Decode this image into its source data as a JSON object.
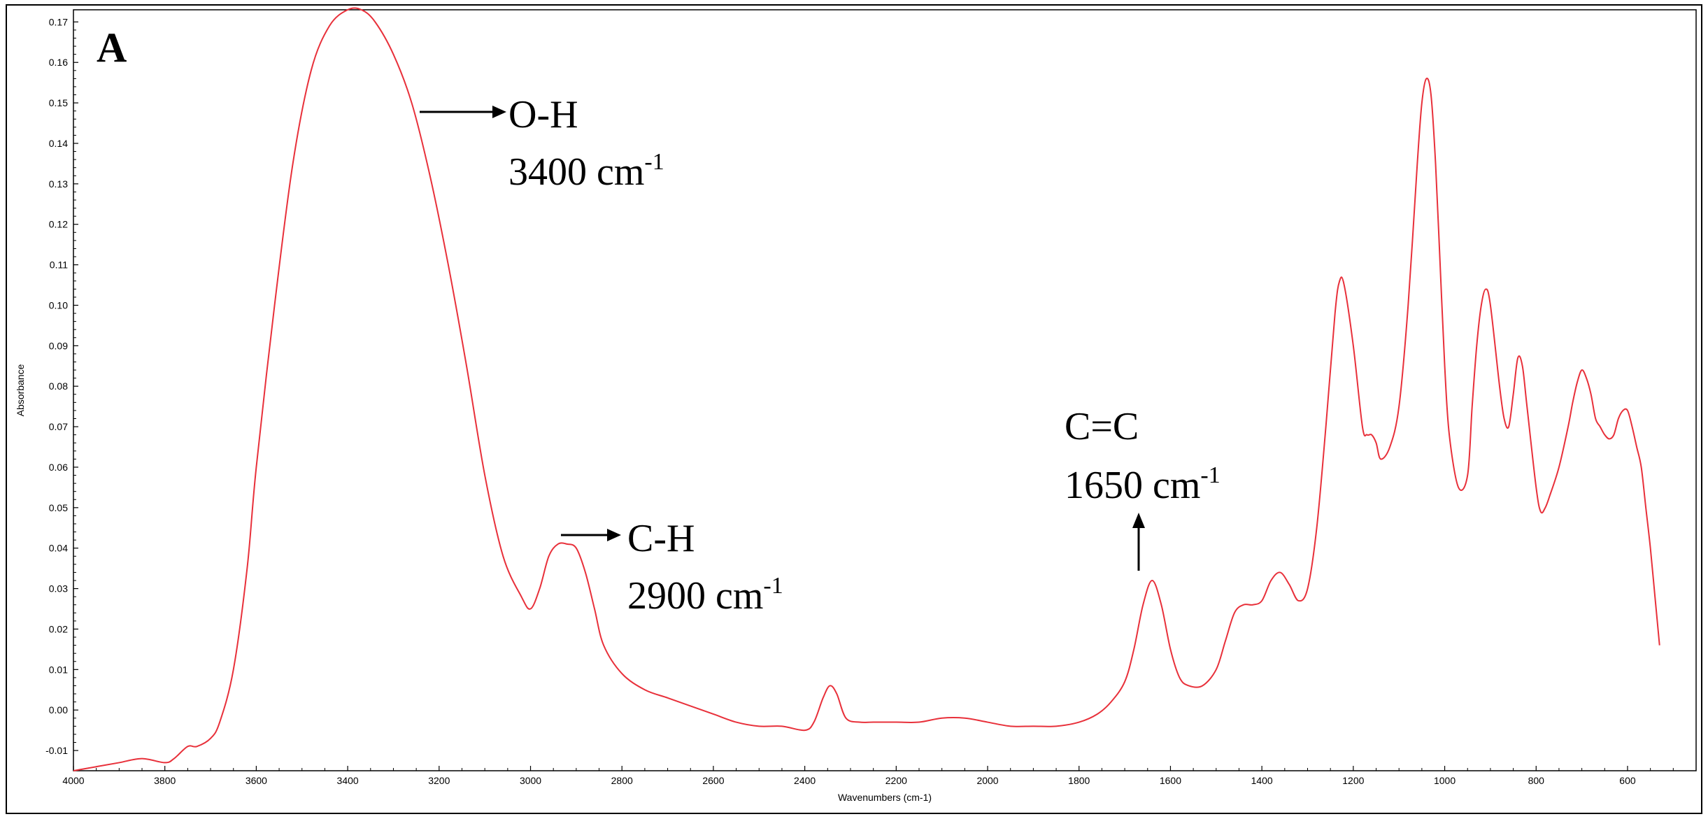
{
  "chart_data": {
    "type": "line",
    "panel_label": "A",
    "xlabel": "Wavenumbers (cm-1)",
    "ylabel": "Absorbance",
    "xlim": [
      4000,
      450
    ],
    "ylim": [
      -0.015,
      0.173
    ],
    "x_reversed": true,
    "grid": false,
    "x_ticks": [
      4000,
      3800,
      3600,
      3400,
      3200,
      3000,
      2800,
      2600,
      2400,
      2200,
      2000,
      1800,
      1600,
      1400,
      1200,
      1000,
      800,
      600
    ],
    "y_ticks": [
      -0.01,
      0.0,
      0.01,
      0.02,
      0.03,
      0.04,
      0.05,
      0.06,
      0.07,
      0.08,
      0.09,
      0.1,
      0.11,
      0.12,
      0.13,
      0.14,
      0.15,
      0.16,
      0.17
    ],
    "y_tick_labels": [
      "-0.01",
      "0.00",
      "0.01",
      "0.02",
      "0.03",
      "0.04",
      "0.05",
      "0.06",
      "0.07",
      "0.08",
      "0.09",
      "0.10",
      "0.11",
      "0.12",
      "0.13",
      "0.14",
      "0.15",
      "0.16",
      "0.17"
    ],
    "series": [
      {
        "color": "#e8303a",
        "x": [
          4000,
          3950,
          3900,
          3850,
          3800,
          3780,
          3750,
          3730,
          3700,
          3680,
          3650,
          3620,
          3600,
          3560,
          3520,
          3480,
          3440,
          3400,
          3370,
          3340,
          3300,
          3260,
          3220,
          3180,
          3140,
          3100,
          3060,
          3020,
          3000,
          2980,
          2960,
          2940,
          2920,
          2900,
          2880,
          2860,
          2840,
          2800,
          2750,
          2700,
          2650,
          2600,
          2550,
          2500,
          2450,
          2400,
          2380,
          2360,
          2345,
          2330,
          2310,
          2280,
          2250,
          2200,
          2150,
          2100,
          2050,
          2000,
          1950,
          1900,
          1850,
          1800,
          1760,
          1730,
          1700,
          1680,
          1660,
          1640,
          1620,
          1600,
          1580,
          1560,
          1530,
          1500,
          1480,
          1460,
          1440,
          1420,
          1400,
          1380,
          1360,
          1340,
          1320,
          1300,
          1280,
          1260,
          1240,
          1230,
          1220,
          1200,
          1180,
          1170,
          1160,
          1150,
          1140,
          1120,
          1100,
          1080,
          1060,
          1050,
          1040,
          1030,
          1020,
          1010,
          1000,
          990,
          970,
          950,
          940,
          930,
          920,
          910,
          900,
          880,
          870,
          860,
          850,
          840,
          830,
          820,
          800,
          790,
          780,
          770,
          750,
          730,
          720,
          710,
          700,
          690,
          680,
          670,
          660,
          650,
          640,
          630,
          620,
          610,
          600,
          590,
          580,
          570,
          560,
          550,
          540,
          530
        ],
        "y": [
          -0.015,
          -0.014,
          -0.013,
          -0.012,
          -0.013,
          -0.012,
          -0.009,
          -0.009,
          -0.007,
          -0.003,
          0.01,
          0.035,
          0.06,
          0.1,
          0.135,
          0.158,
          0.169,
          0.173,
          0.173,
          0.17,
          0.162,
          0.15,
          0.132,
          0.11,
          0.085,
          0.058,
          0.038,
          0.028,
          0.025,
          0.03,
          0.038,
          0.041,
          0.041,
          0.04,
          0.034,
          0.025,
          0.016,
          0.009,
          0.005,
          0.003,
          0.001,
          -0.001,
          -0.003,
          -0.004,
          -0.004,
          -0.005,
          -0.003,
          0.003,
          0.006,
          0.004,
          -0.002,
          -0.003,
          -0.003,
          -0.003,
          -0.003,
          -0.002,
          -0.002,
          -0.003,
          -0.004,
          -0.004,
          -0.004,
          -0.003,
          -0.001,
          0.002,
          0.007,
          0.015,
          0.026,
          0.032,
          0.026,
          0.015,
          0.008,
          0.006,
          0.006,
          0.01,
          0.017,
          0.024,
          0.026,
          0.026,
          0.027,
          0.032,
          0.034,
          0.031,
          0.027,
          0.03,
          0.045,
          0.07,
          0.098,
          0.106,
          0.105,
          0.09,
          0.07,
          0.068,
          0.068,
          0.066,
          0.062,
          0.065,
          0.075,
          0.1,
          0.135,
          0.15,
          0.156,
          0.152,
          0.135,
          0.11,
          0.085,
          0.068,
          0.055,
          0.058,
          0.075,
          0.09,
          0.1,
          0.104,
          0.1,
          0.08,
          0.072,
          0.07,
          0.078,
          0.087,
          0.085,
          0.075,
          0.055,
          0.049,
          0.05,
          0.053,
          0.06,
          0.07,
          0.076,
          0.081,
          0.084,
          0.082,
          0.078,
          0.072,
          0.07,
          0.068,
          0.067,
          0.068,
          0.072,
          0.074,
          0.074,
          0.07,
          0.065,
          0.06,
          0.05,
          0.04,
          0.028,
          0.016
        ]
      }
    ],
    "annotations": [
      {
        "label": "O-H",
        "value": "3400 cm",
        "sup": "-1",
        "arrow": "right"
      },
      {
        "label": "C-H",
        "value": "2900 cm",
        "sup": "-1",
        "arrow": "right"
      },
      {
        "label": "C=C",
        "value": "1650 cm",
        "sup": "-1",
        "arrow": "up"
      }
    ]
  }
}
